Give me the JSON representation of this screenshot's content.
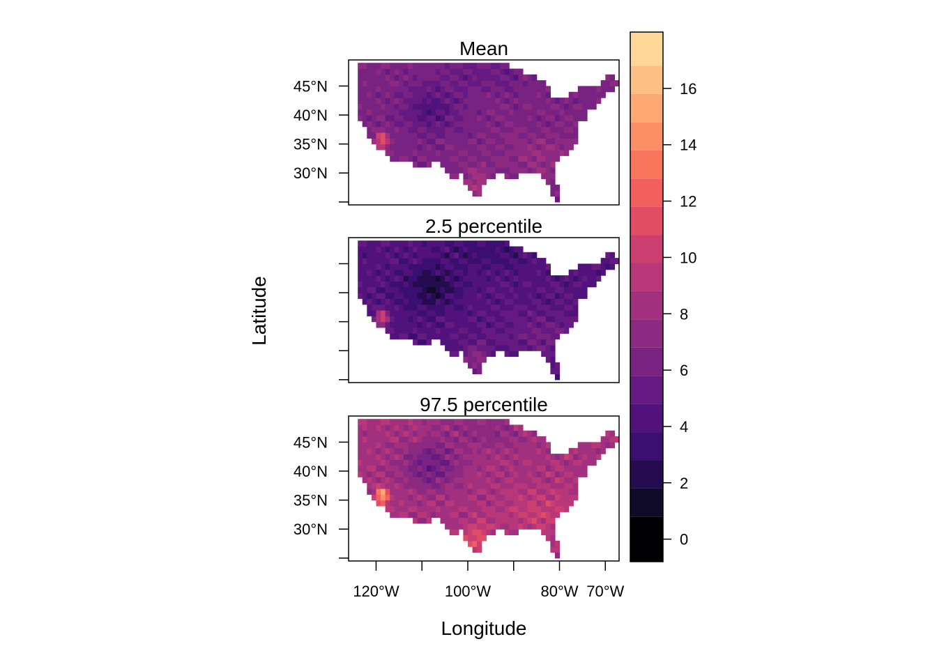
{
  "chart_data": {
    "type": "heatmap",
    "xlabel": "Longitude",
    "ylabel": "Latitude",
    "xlim": [
      -126,
      -67
    ],
    "ylim": [
      24.5,
      49.5
    ],
    "x_ticks": [
      {
        "value": -120,
        "label": "120°W"
      },
      {
        "value": -110,
        "label": ""
      },
      {
        "value": -100,
        "label": "100°W"
      },
      {
        "value": -90,
        "label": ""
      },
      {
        "value": -80,
        "label": "80°W"
      },
      {
        "value": -70,
        "label": "70°W"
      }
    ],
    "y_ticks": [
      {
        "value": 25,
        "label": ""
      },
      {
        "value": 30,
        "label": "30°N"
      },
      {
        "value": 35,
        "label": "35°N"
      },
      {
        "value": 40,
        "label": "40°N"
      },
      {
        "value": 45,
        "label": "45°N"
      }
    ],
    "panels": [
      {
        "title": "Mean",
        "typical_value": 6.5,
        "shift": 0,
        "show_y_labels": true,
        "show_x_labels": false
      },
      {
        "title": "2.5 percentile",
        "typical_value": 4.5,
        "shift": -2,
        "show_y_labels": false,
        "show_x_labels": false
      },
      {
        "title": "97.5 percentile",
        "typical_value": 8.5,
        "shift": 2,
        "show_y_labels": true,
        "show_x_labels": true
      }
    ],
    "colorbar": {
      "range": [
        -0.8,
        18
      ],
      "breaks": [
        -0.8,
        0.8,
        1.8,
        2.8,
        3.8,
        4.8,
        5.8,
        6.8,
        7.8,
        8.8,
        9.8,
        10.8,
        11.8,
        12.8,
        13.8,
        14.8,
        15.8,
        16.8,
        18
      ],
      "colors": [
        "#000004",
        "#0f0b29",
        "#240c4f",
        "#3b0f70",
        "#51127c",
        "#641a80",
        "#782281",
        "#8c2981",
        "#a1307e",
        "#b73779",
        "#cc3f71",
        "#e24d66",
        "#f1605d",
        "#f8765c",
        "#fc8f65",
        "#fea973",
        "#febf84",
        "#fed799",
        "#fcfdbf"
      ],
      "ticks": [
        0,
        2,
        4,
        6,
        8,
        10,
        12,
        14,
        16
      ]
    }
  }
}
